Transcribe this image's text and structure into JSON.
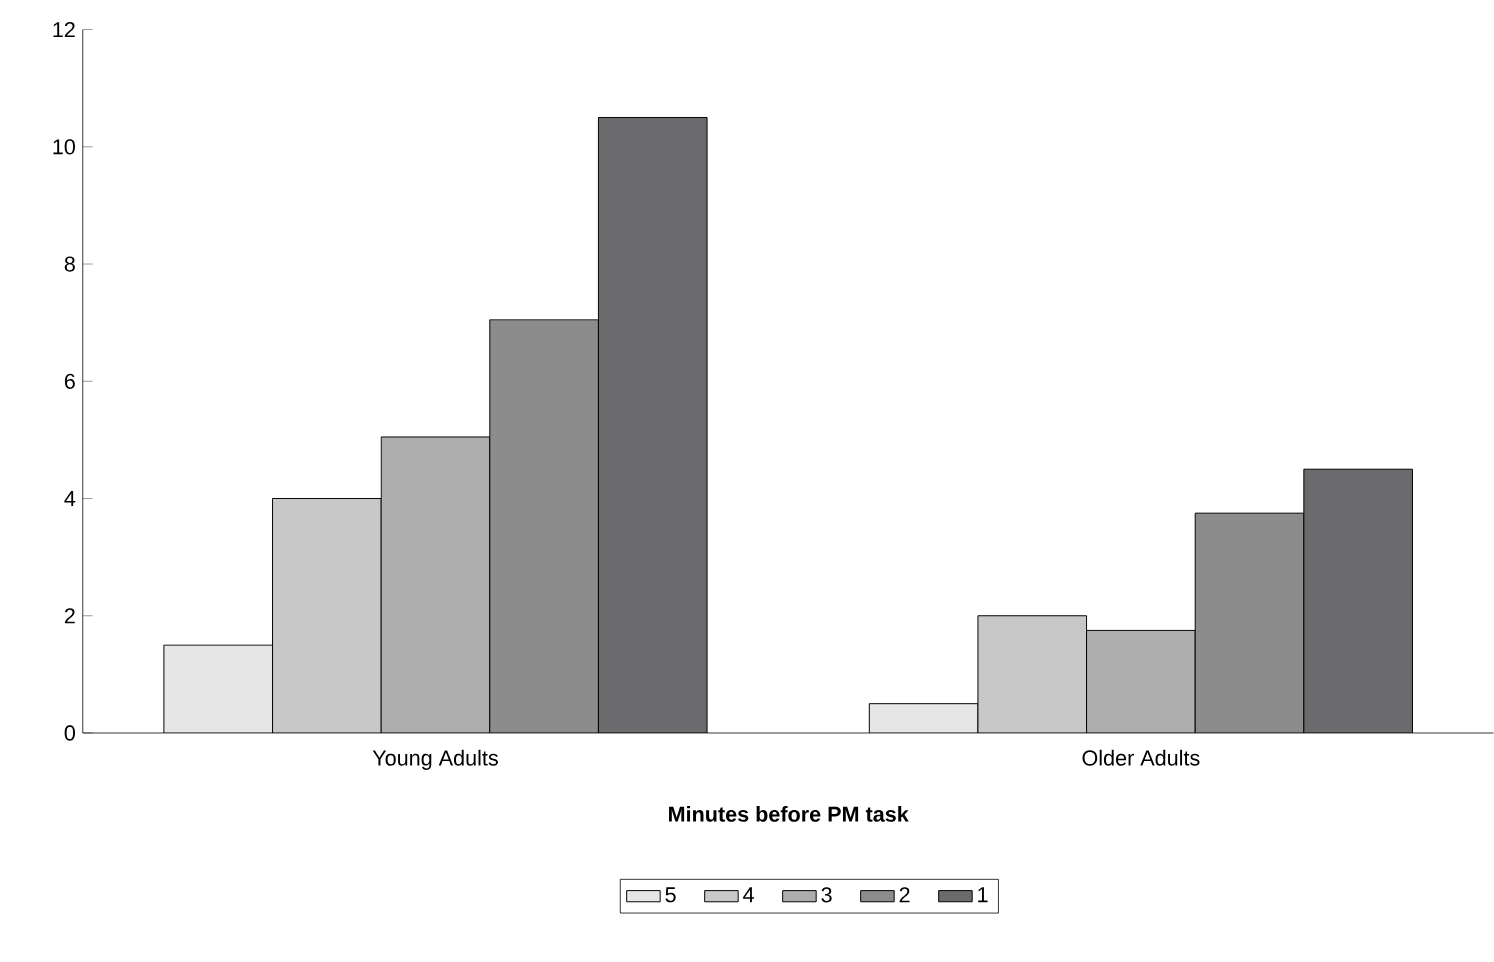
{
  "chart_data": {
    "type": "bar",
    "xlabel": "Minutes before PM task",
    "categories": [
      "Young Adults",
      "Older Adults"
    ],
    "series": [
      {
        "name": "5",
        "color": "#e6e6e6",
        "values": [
          1.5,
          0.5
        ]
      },
      {
        "name": "4",
        "color": "#c8c8c8",
        "values": [
          4.0,
          2.0
        ]
      },
      {
        "name": "3",
        "color": "#adadad",
        "values": [
          5.05,
          1.75
        ]
      },
      {
        "name": "2",
        "color": "#8c8c8c",
        "values": [
          7.05,
          3.75
        ]
      },
      {
        "name": "1",
        "color": "#6b6b6e",
        "values": [
          10.5,
          4.5
        ]
      }
    ],
    "ylim": [
      0,
      12
    ],
    "yticks": [
      0,
      2,
      4,
      6,
      8,
      10,
      12
    ],
    "legend": "bottom",
    "grid": false
  }
}
